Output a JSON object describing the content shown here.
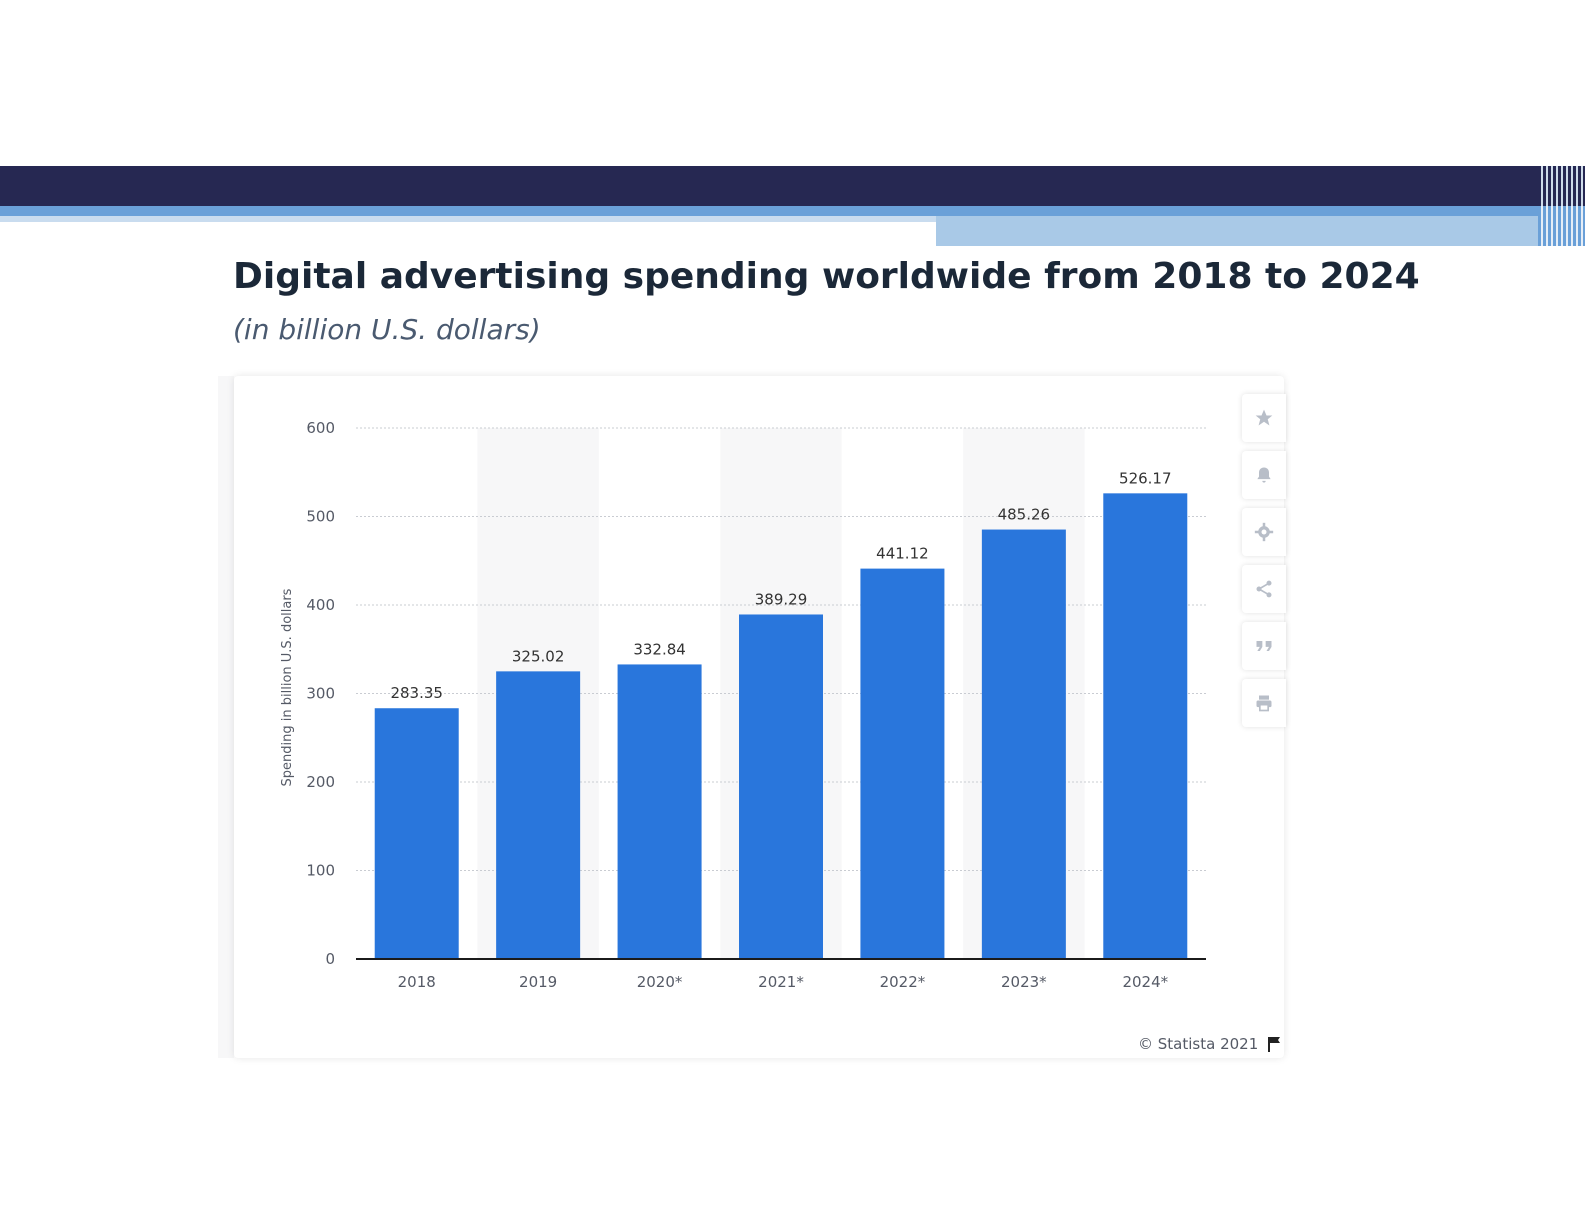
{
  "header": {
    "title": "Digital advertising spending worldwide from 2018 to 2024",
    "subtitle": "(in billion U.S. dollars)"
  },
  "toolbar": {
    "items": [
      {
        "name": "star-icon"
      },
      {
        "name": "bell-icon"
      },
      {
        "name": "gear-icon"
      },
      {
        "name": "share-icon"
      },
      {
        "name": "quote-icon"
      },
      {
        "name": "print-icon"
      }
    ]
  },
  "footer": {
    "credit": "© Statista 2021"
  },
  "colors": {
    "bar": "#2976dc",
    "header_dark": "#262852",
    "header_blue": "#6aa0d8"
  },
  "chart_data": {
    "type": "bar",
    "categories": [
      "2018",
      "2019",
      "2020*",
      "2021*",
      "2022*",
      "2023*",
      "2024*"
    ],
    "values": [
      283.35,
      325.02,
      332.84,
      389.29,
      441.12,
      485.26,
      526.17
    ],
    "value_labels": [
      "283.35",
      "325.02",
      "332.84",
      "389.29",
      "441.12",
      "485.26",
      "526.17"
    ],
    "title": "Digital advertising spending worldwide from 2018 to 2024",
    "subtitle": "(in billion U.S. dollars)",
    "xlabel": "",
    "ylabel": "Spending in billion U.S. dollars",
    "ylim": [
      0,
      600
    ],
    "yticks": [
      "0",
      "100",
      "200",
      "300",
      "400",
      "500",
      "600"
    ],
    "grid": true,
    "legend": "none"
  }
}
